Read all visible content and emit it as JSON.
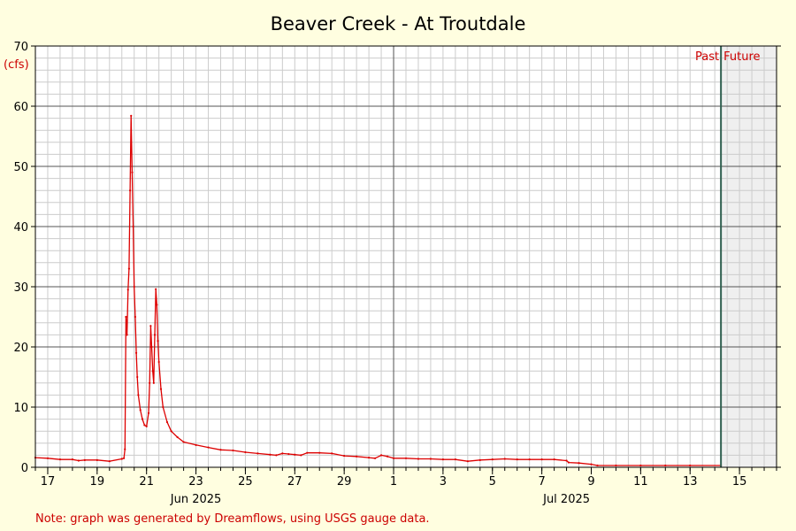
{
  "chart_data": {
    "type": "line",
    "title": "Beaver Creek - At Troutdale",
    "ylabel": "(cfs)",
    "xlabel": "",
    "ylim": [
      0,
      70
    ],
    "xlim": [
      "2025-06-16 12:00",
      "2025-07-16 12:00"
    ],
    "now": "2025-07-14 06:00",
    "yticks": [
      0,
      10,
      20,
      30,
      40,
      50,
      60,
      70
    ],
    "xticks": [
      {
        "date": "2025-06-17",
        "label": "17"
      },
      {
        "date": "2025-06-19",
        "label": "19"
      },
      {
        "date": "2025-06-21",
        "label": "21"
      },
      {
        "date": "2025-06-23",
        "label": "23"
      },
      {
        "date": "2025-06-25",
        "label": "25"
      },
      {
        "date": "2025-06-27",
        "label": "27"
      },
      {
        "date": "2025-06-29",
        "label": "29"
      },
      {
        "date": "2025-07-01",
        "label": "1"
      },
      {
        "date": "2025-07-03",
        "label": "3"
      },
      {
        "date": "2025-07-05",
        "label": "5"
      },
      {
        "date": "2025-07-07",
        "label": "7"
      },
      {
        "date": "2025-07-09",
        "label": "9"
      },
      {
        "date": "2025-07-11",
        "label": "11"
      },
      {
        "date": "2025-07-13",
        "label": "13"
      },
      {
        "date": "2025-07-15",
        "label": "15"
      }
    ],
    "month_labels": [
      {
        "date": "2025-06-23",
        "label": "Jun 2025"
      },
      {
        "date": "2025-07-08",
        "label": "Jul 2025"
      }
    ],
    "month_boundary": "2025-07-01",
    "past_label": "Past",
    "future_label": "Future",
    "grid": true,
    "series": [
      {
        "color": "#dd0000",
        "points": [
          [
            "2025-06-16 12:00",
            1.6
          ],
          [
            "2025-06-17 00:00",
            1.5
          ],
          [
            "2025-06-17 12:00",
            1.3
          ],
          [
            "2025-06-18 00:00",
            1.3
          ],
          [
            "2025-06-18 06:00",
            1.1
          ],
          [
            "2025-06-18 12:00",
            1.2
          ],
          [
            "2025-06-19 00:00",
            1.2
          ],
          [
            "2025-06-19 12:00",
            1.0
          ],
          [
            "2025-06-20 00:00",
            1.4
          ],
          [
            "2025-06-20 02:00",
            1.5
          ],
          [
            "2025-06-20 03:00",
            3.0
          ],
          [
            "2025-06-20 04:00",
            25.0
          ],
          [
            "2025-06-20 05:00",
            22.0
          ],
          [
            "2025-06-20 06:00",
            29.5
          ],
          [
            "2025-06-20 07:00",
            33.0
          ],
          [
            "2025-06-20 08:00",
            46.0
          ],
          [
            "2025-06-20 09:00",
            58.4
          ],
          [
            "2025-06-20 10:00",
            49.0
          ],
          [
            "2025-06-20 11:00",
            40.0
          ],
          [
            "2025-06-20 12:00",
            30.0
          ],
          [
            "2025-06-20 13:00",
            25.0
          ],
          [
            "2025-06-20 14:00",
            19.0
          ],
          [
            "2025-06-20 15:00",
            15.0
          ],
          [
            "2025-06-20 16:00",
            12.0
          ],
          [
            "2025-06-20 18:00",
            9.5
          ],
          [
            "2025-06-20 20:00",
            8.0
          ],
          [
            "2025-06-20 22:00",
            7.0
          ],
          [
            "2025-06-21 00:00",
            6.8
          ],
          [
            "2025-06-21 02:00",
            9.0
          ],
          [
            "2025-06-21 03:00",
            14.0
          ],
          [
            "2025-06-21 04:00",
            23.5
          ],
          [
            "2025-06-21 05:00",
            20.0
          ],
          [
            "2025-06-21 06:00",
            16.0
          ],
          [
            "2025-06-21 07:00",
            14.0
          ],
          [
            "2025-06-21 08:00",
            22.0
          ],
          [
            "2025-06-21 09:00",
            29.6
          ],
          [
            "2025-06-21 10:00",
            27.0
          ],
          [
            "2025-06-21 11:00",
            21.0
          ],
          [
            "2025-06-21 12:00",
            17.5
          ],
          [
            "2025-06-21 14:00",
            13.0
          ],
          [
            "2025-06-21 16:00",
            10.0
          ],
          [
            "2025-06-21 20:00",
            7.5
          ],
          [
            "2025-06-22 00:00",
            6.0
          ],
          [
            "2025-06-22 06:00",
            5.0
          ],
          [
            "2025-06-22 12:00",
            4.2
          ],
          [
            "2025-06-23 00:00",
            3.7
          ],
          [
            "2025-06-23 12:00",
            3.3
          ],
          [
            "2025-06-24 00:00",
            2.9
          ],
          [
            "2025-06-24 12:00",
            2.8
          ],
          [
            "2025-06-25 00:00",
            2.5
          ],
          [
            "2025-06-25 12:00",
            2.3
          ],
          [
            "2025-06-26 00:00",
            2.1
          ],
          [
            "2025-06-26 06:00",
            2.0
          ],
          [
            "2025-06-26 12:00",
            2.3
          ],
          [
            "2025-06-26 18:00",
            2.2
          ],
          [
            "2025-06-27 00:00",
            2.1
          ],
          [
            "2025-06-27 06:00",
            2.0
          ],
          [
            "2025-06-27 12:00",
            2.4
          ],
          [
            "2025-06-28 00:00",
            2.4
          ],
          [
            "2025-06-28 12:00",
            2.3
          ],
          [
            "2025-06-29 00:00",
            1.9
          ],
          [
            "2025-06-29 12:00",
            1.8
          ],
          [
            "2025-06-30 00:00",
            1.6
          ],
          [
            "2025-06-30 06:00",
            1.5
          ],
          [
            "2025-06-30 12:00",
            2.0
          ],
          [
            "2025-06-30 18:00",
            1.8
          ],
          [
            "2025-07-01 00:00",
            1.5
          ],
          [
            "2025-07-01 12:00",
            1.5
          ],
          [
            "2025-07-02 00:00",
            1.4
          ],
          [
            "2025-07-02 12:00",
            1.4
          ],
          [
            "2025-07-03 00:00",
            1.3
          ],
          [
            "2025-07-03 12:00",
            1.3
          ],
          [
            "2025-07-04 00:00",
            1.0
          ],
          [
            "2025-07-04 12:00",
            1.2
          ],
          [
            "2025-07-05 00:00",
            1.3
          ],
          [
            "2025-07-05 12:00",
            1.4
          ],
          [
            "2025-07-06 00:00",
            1.3
          ],
          [
            "2025-07-06 12:00",
            1.3
          ],
          [
            "2025-07-07 00:00",
            1.3
          ],
          [
            "2025-07-07 12:00",
            1.3
          ],
          [
            "2025-07-08 00:00",
            1.1
          ],
          [
            "2025-07-08 02:00",
            0.8
          ],
          [
            "2025-07-08 12:00",
            0.7
          ],
          [
            "2025-07-09 00:00",
            0.5
          ],
          [
            "2025-07-09 06:00",
            0.3
          ],
          [
            "2025-07-10 00:00",
            0.3
          ],
          [
            "2025-07-11 00:00",
            0.3
          ],
          [
            "2025-07-12 00:00",
            0.3
          ],
          [
            "2025-07-13 00:00",
            0.3
          ],
          [
            "2025-07-14 06:00",
            0.3
          ]
        ]
      }
    ]
  },
  "footer": {
    "note": "Note: graph was generated by Dreamflows, using USGS gauge data."
  },
  "colors": {
    "background": "#fffee0",
    "plot_background": "#ffffff",
    "future_shade": "#efefef",
    "series": "#dd0000",
    "now_line": "#2f5f4f",
    "minor_grid": "#cccccc",
    "major_grid": "#555555"
  }
}
